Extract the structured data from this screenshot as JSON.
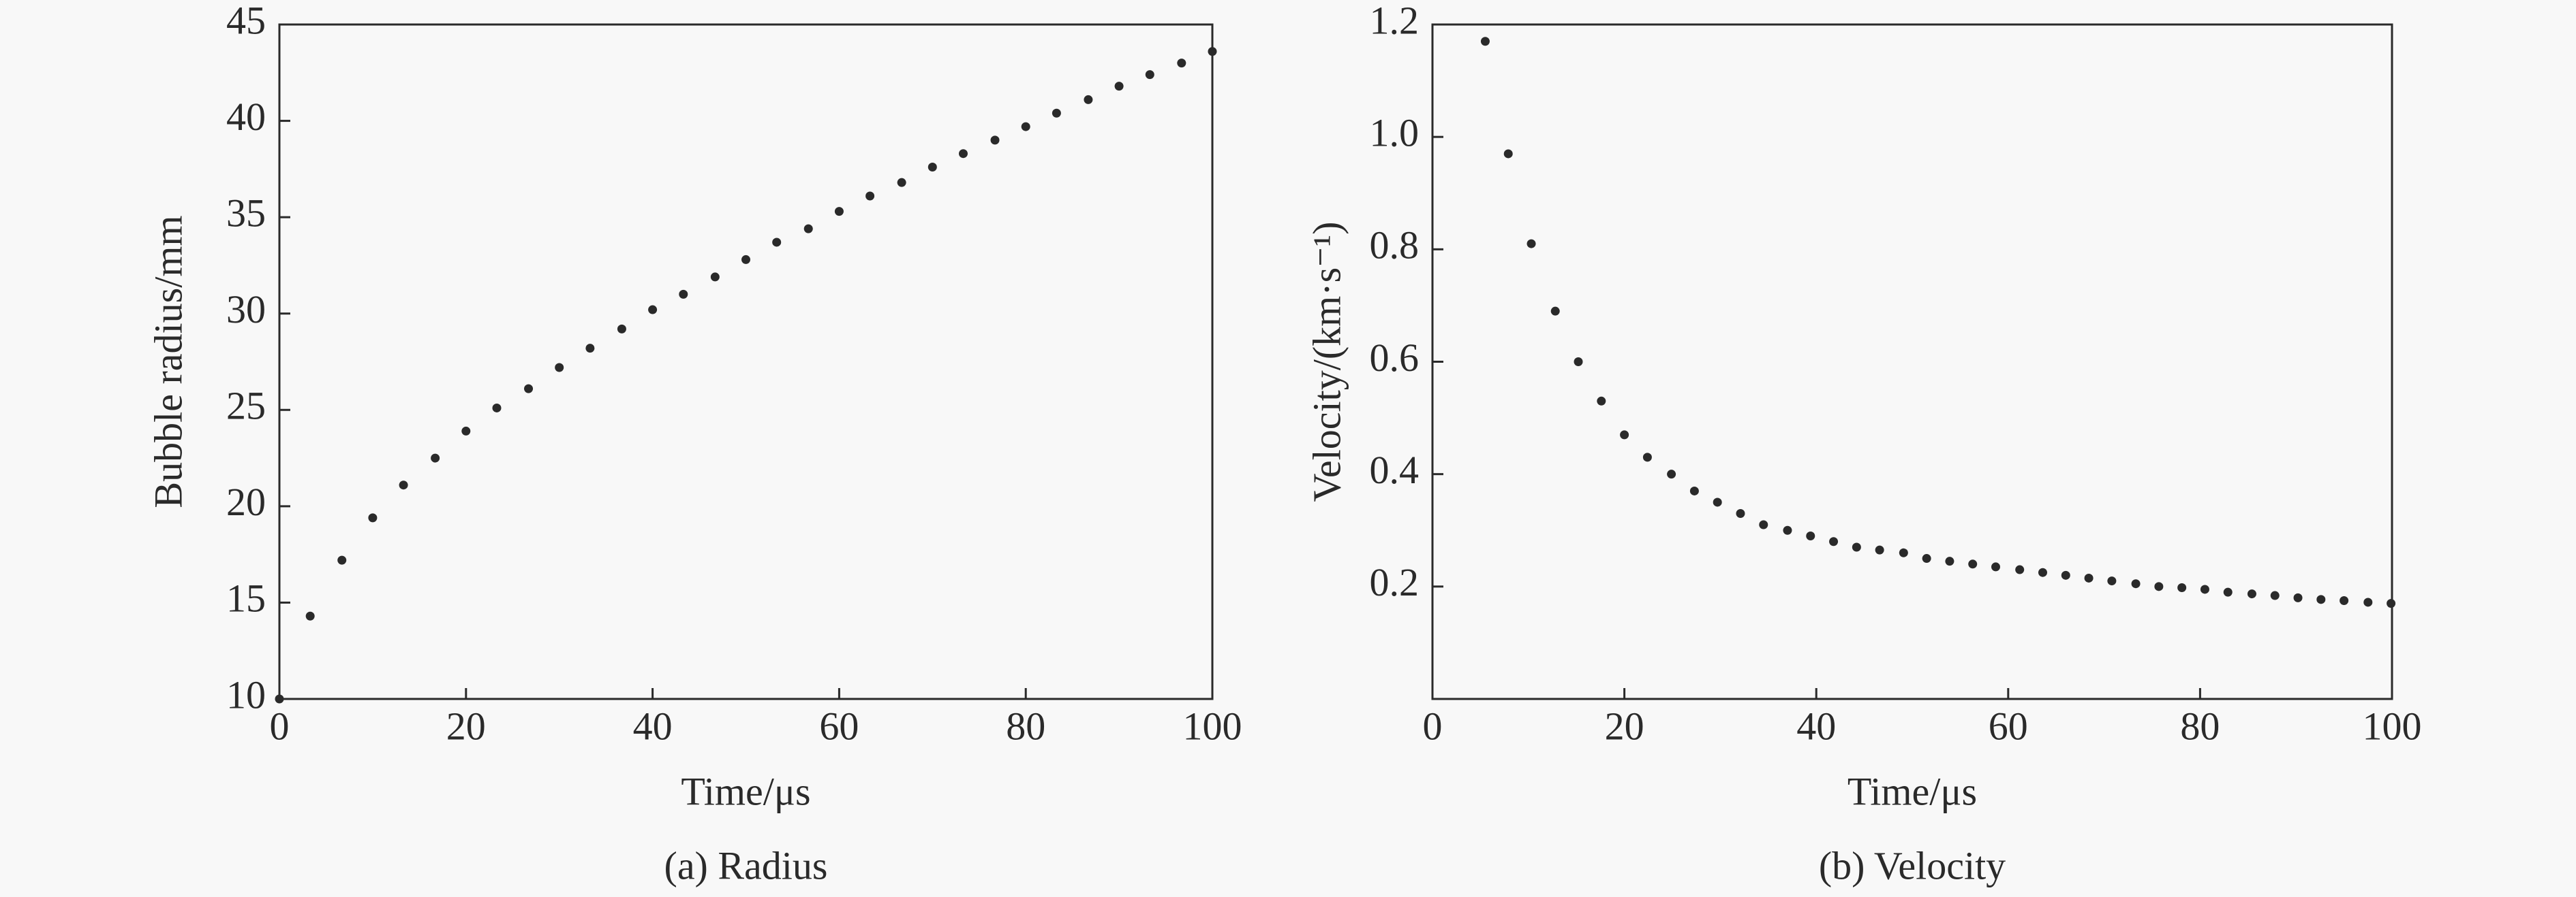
{
  "chart_data": [
    {
      "type": "scatter",
      "caption": "(a) Radius",
      "x_label": "Time/μs",
      "y_label": "Bubble radius/mm",
      "color": "#2a2a2a",
      "x": [
        0,
        3.3,
        6.7,
        10,
        13.3,
        16.7,
        20,
        23.3,
        26.7,
        30,
        33.3,
        36.7,
        40,
        43.3,
        46.7,
        50,
        53.3,
        56.7,
        60,
        63.3,
        66.7,
        70,
        73.3,
        76.7,
        80,
        83.3,
        86.7,
        90,
        93.3,
        96.7,
        100
      ],
      "values": [
        10,
        14.3,
        17.2,
        19.4,
        21.1,
        22.5,
        23.9,
        25.1,
        26.1,
        27.2,
        28.2,
        29.2,
        30.2,
        31.0,
        31.9,
        32.8,
        33.7,
        34.4,
        35.3,
        36.1,
        36.8,
        37.6,
        38.3,
        39.0,
        39.7,
        40.4,
        41.1,
        41.8,
        42.4,
        43.0,
        43.6
      ],
      "xlim": [
        0,
        100
      ],
      "xticks": [
        0,
        20,
        40,
        60,
        80,
        100
      ],
      "ylim": [
        10,
        45
      ],
      "yticks": [
        10,
        15,
        20,
        25,
        30,
        35,
        40,
        45
      ]
    },
    {
      "type": "scatter",
      "caption": "(b) Velocity",
      "x_label": "Time/μs",
      "y_label": "Velocity/(km·s⁻¹)",
      "color": "#2a2a2a",
      "x": [
        5.5,
        7.9,
        10.3,
        12.8,
        15.2,
        17.6,
        20.0,
        22.4,
        24.9,
        27.3,
        29.7,
        32.1,
        34.5,
        37.0,
        39.4,
        41.8,
        44.2,
        46.6,
        49.1,
        51.5,
        53.9,
        56.3,
        58.7,
        61.2,
        63.6,
        66.0,
        68.4,
        70.8,
        73.3,
        75.7,
        78.1,
        80.5,
        82.9,
        85.4,
        87.8,
        90.2,
        92.6,
        95.0,
        97.5,
        99.9
      ],
      "values": [
        1.17,
        0.97,
        0.81,
        0.69,
        0.6,
        0.53,
        0.47,
        0.43,
        0.4,
        0.37,
        0.35,
        0.33,
        0.31,
        0.3,
        0.29,
        0.28,
        0.27,
        0.265,
        0.26,
        0.25,
        0.245,
        0.24,
        0.235,
        0.23,
        0.225,
        0.22,
        0.215,
        0.21,
        0.205,
        0.2,
        0.198,
        0.195,
        0.19,
        0.187,
        0.184,
        0.18,
        0.177,
        0.175,
        0.172,
        0.17
      ],
      "xlim": [
        0,
        100
      ],
      "xticks": [
        0,
        20,
        40,
        60,
        80,
        100
      ],
      "ylim": [
        0,
        1.2
      ],
      "yticks": [
        0.2,
        0.4,
        0.6,
        0.8,
        {
          "value": 1,
          "label": "1.0"
        },
        1.2
      ]
    }
  ]
}
